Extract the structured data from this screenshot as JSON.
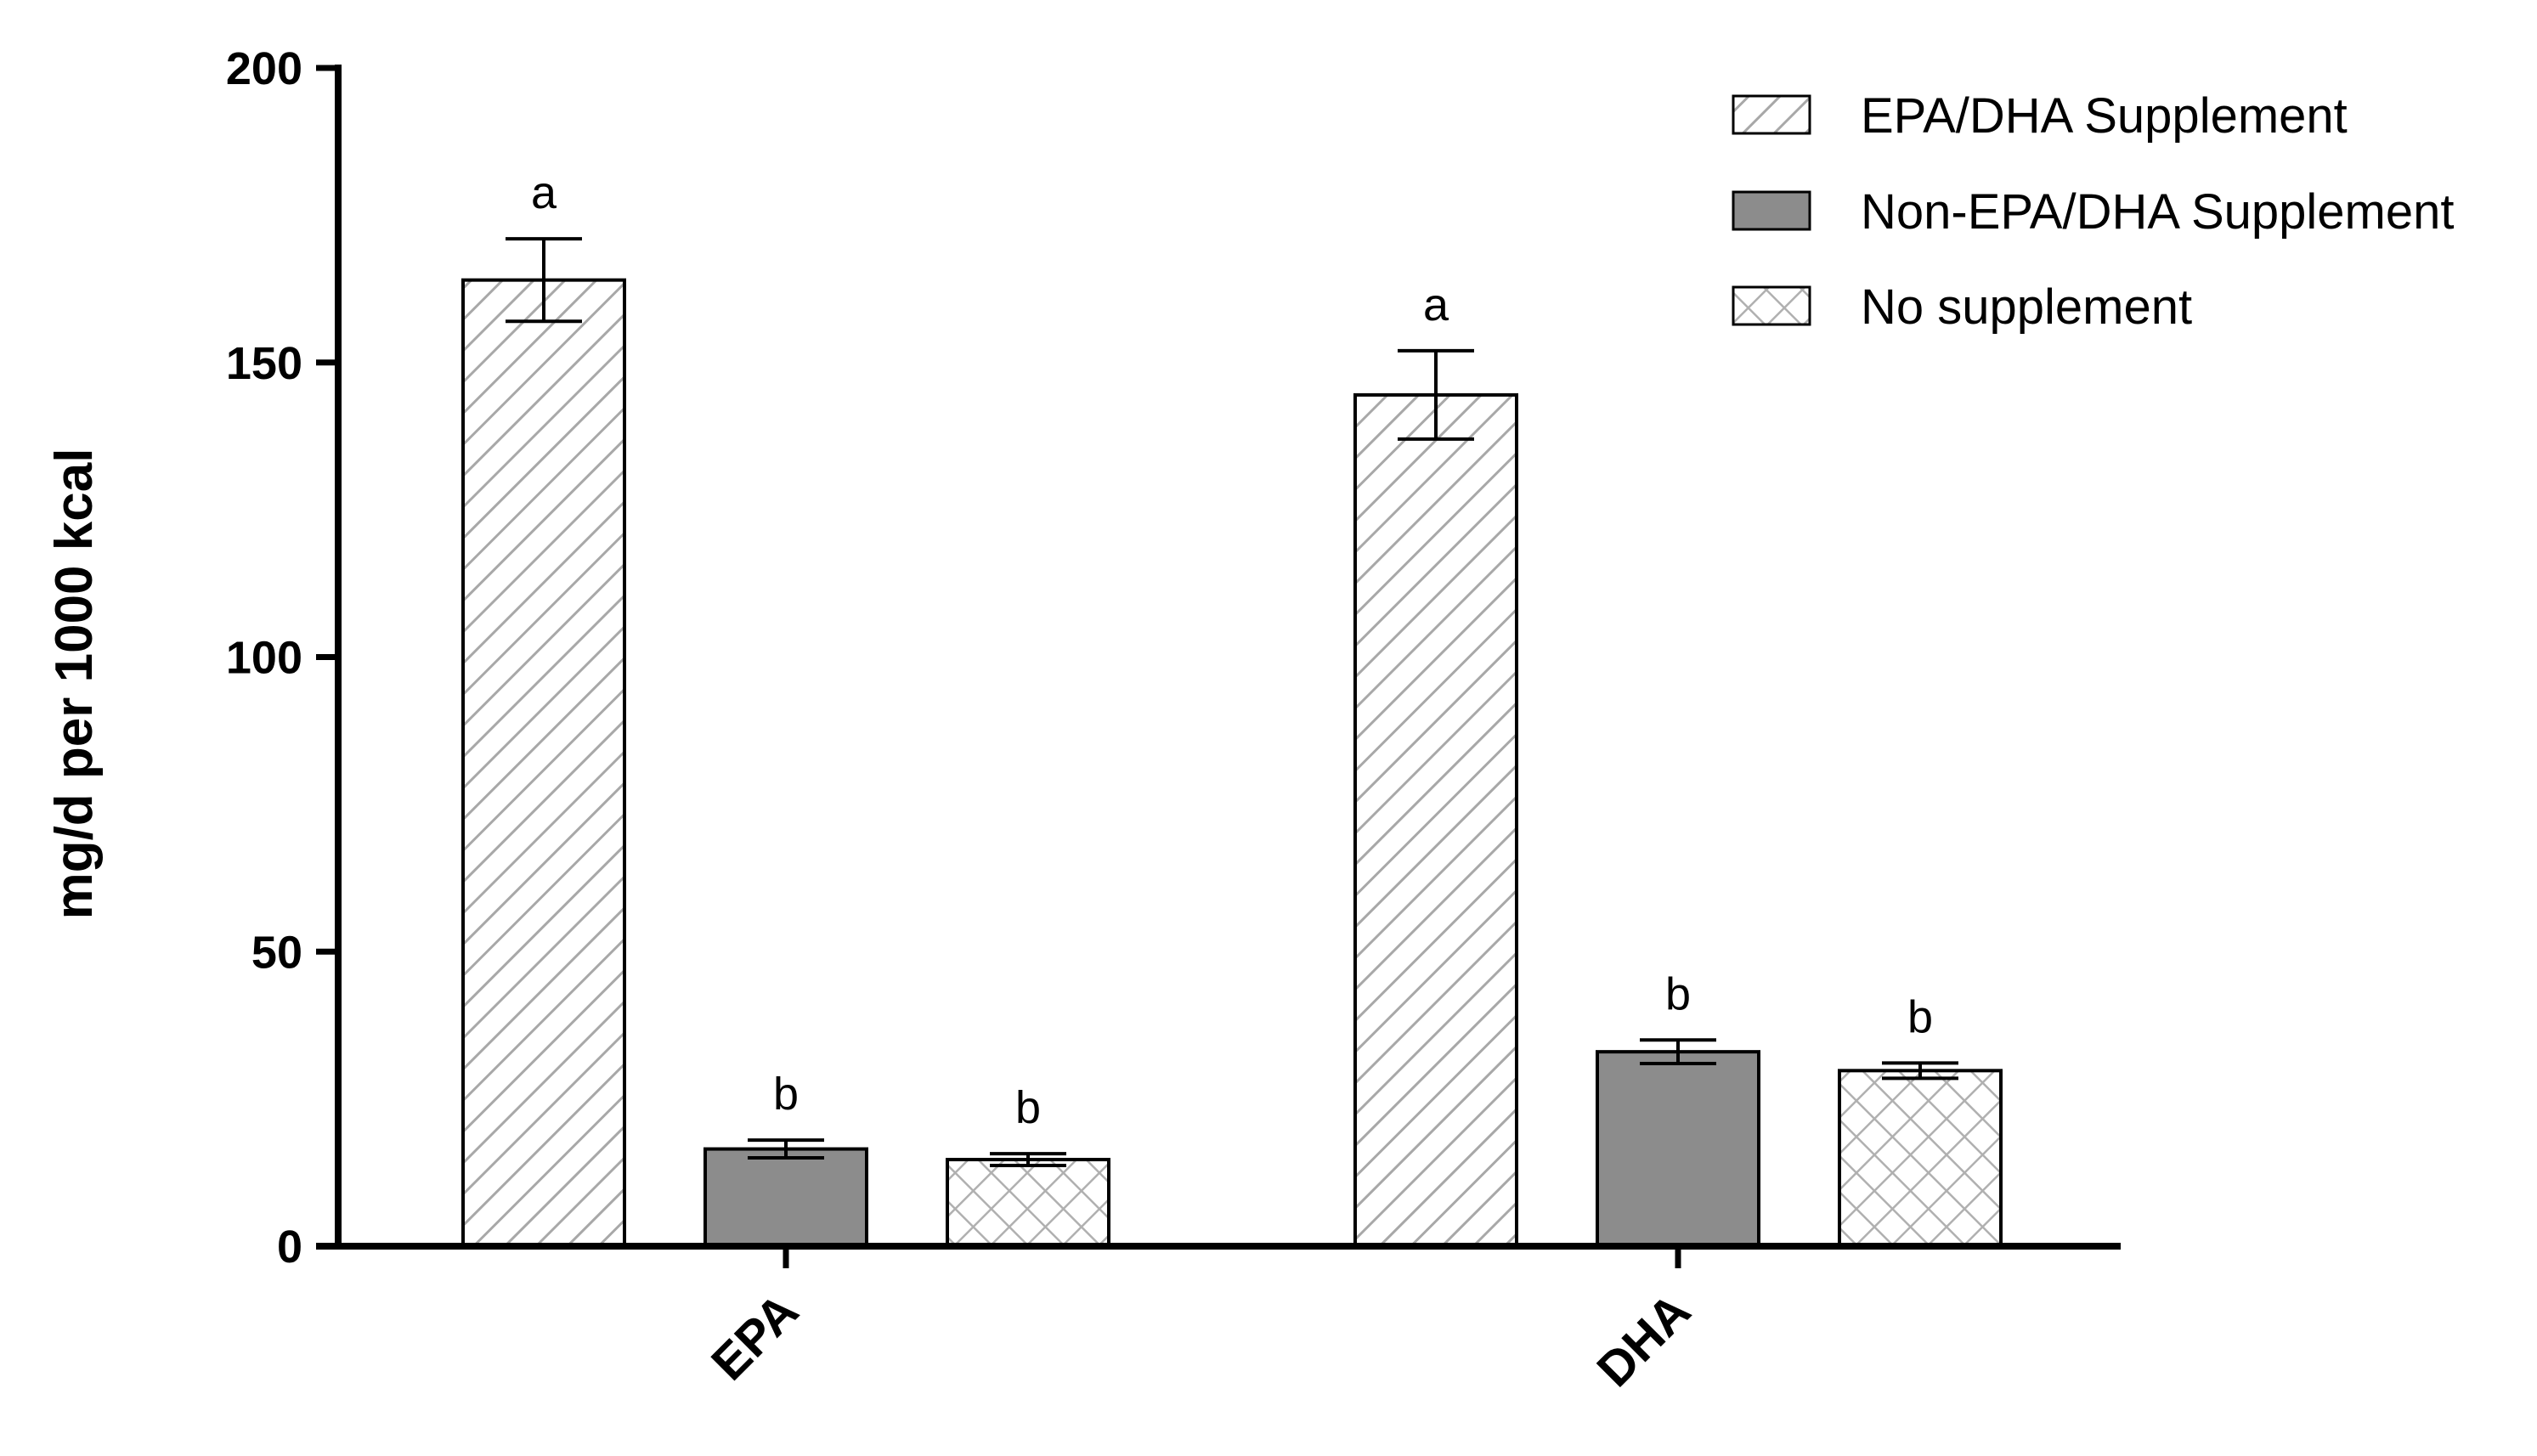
{
  "chart_data": {
    "type": "bar",
    "ylabel": "mg/d per 1000 kcal",
    "ylim": [
      0,
      200
    ],
    "yticks": [
      0,
      50,
      100,
      150,
      200
    ],
    "categories": [
      "EPA",
      "DHA"
    ],
    "series": [
      {
        "name": "EPA/DHA Supplement",
        "pattern": "diagonal-hatch",
        "color": "#999999",
        "values": [
          164,
          144.5
        ],
        "errors": [
          7,
          7.5
        ],
        "sig": [
          "a",
          "a"
        ]
      },
      {
        "name": "Non-EPA/DHA Supplement",
        "pattern": "solid",
        "color": "#8c8c8c",
        "values": [
          16.5,
          33
        ],
        "errors": [
          1.5,
          2
        ],
        "sig": [
          "b",
          "b"
        ]
      },
      {
        "name": "No supplement",
        "pattern": "crosshatch",
        "color": "#aaaaaa",
        "values": [
          14.7,
          29.8
        ],
        "errors": [
          1,
          1.3
        ],
        "sig": [
          "b",
          "b"
        ]
      }
    ],
    "legend_position": "top-right",
    "grid": false
  }
}
